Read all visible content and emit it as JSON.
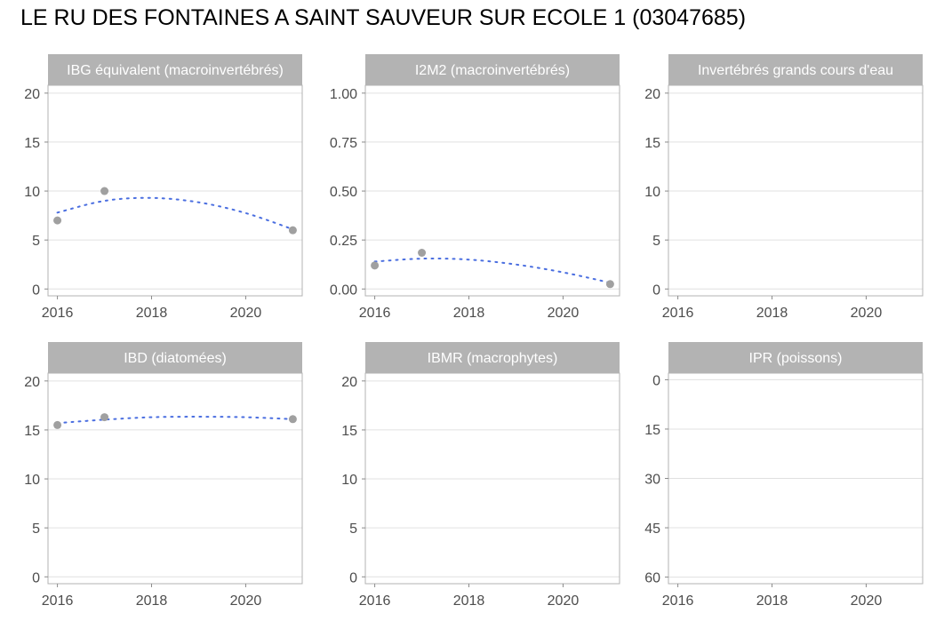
{
  "title": "LE RU DES FONTAINES A SAINT SAUVEUR SUR ECOLE 1 (03047685)",
  "colors": {
    "point": "#a0a0a0",
    "trend": "#4a6ee0",
    "strip": "#b3b3b3",
    "strip_text": "#ffffff",
    "grid": "#e0e0e0",
    "border": "#b3b3b3",
    "tick_text": "#4d4d4d"
  },
  "chart_data": [
    {
      "type": "scatter",
      "title": "IBG équivalent (macroinvertébrés)",
      "xlabel": "",
      "ylabel": "",
      "xlim": [
        2015.8,
        2021.2
      ],
      "ylim": [
        -0.7,
        20.8
      ],
      "x_ticks": [
        2016,
        2018,
        2020
      ],
      "y_ticks": [
        0,
        5,
        10,
        15,
        20
      ],
      "y_tick_labels": [
        "0",
        "5",
        "10",
        "15",
        "20"
      ],
      "y_reversed": false,
      "points": [
        {
          "x": 2016,
          "y": 7
        },
        {
          "x": 2017,
          "y": 10
        },
        {
          "x": 2021,
          "y": 6
        }
      ],
      "trend": {
        "style": "dotted",
        "points": [
          {
            "x": 2016,
            "y": 7.8
          },
          {
            "x": 2017,
            "y": 9.0
          },
          {
            "x": 2018,
            "y": 9.3
          },
          {
            "x": 2019,
            "y": 8.85
          },
          {
            "x": 2020,
            "y": 7.75
          },
          {
            "x": 2021,
            "y": 6.1
          }
        ]
      }
    },
    {
      "type": "scatter",
      "title": "I2M2 (macroinvertébrés)",
      "xlabel": "",
      "ylabel": "",
      "xlim": [
        2015.8,
        2021.2
      ],
      "ylim": [
        -0.035,
        1.04
      ],
      "x_ticks": [
        2016,
        2018,
        2020
      ],
      "y_ticks": [
        0,
        0.25,
        0.5,
        0.75,
        1.0
      ],
      "y_tick_labels": [
        "0.00",
        "0.25",
        "0.50",
        "0.75",
        "1.00"
      ],
      "y_reversed": false,
      "points": [
        {
          "x": 2016,
          "y": 0.12
        },
        {
          "x": 2017,
          "y": 0.185
        },
        {
          "x": 2021,
          "y": 0.025
        }
      ],
      "trend": {
        "style": "dotted",
        "points": [
          {
            "x": 2016,
            "y": 0.14
          },
          {
            "x": 2017,
            "y": 0.155
          },
          {
            "x": 2018,
            "y": 0.15
          },
          {
            "x": 2019,
            "y": 0.125
          },
          {
            "x": 2020,
            "y": 0.085
          },
          {
            "x": 2021,
            "y": 0.032
          }
        ]
      }
    },
    {
      "type": "scatter",
      "title": "Invertébrés grands cours d'eau",
      "xlabel": "",
      "ylabel": "",
      "xlim": [
        2015.8,
        2021.2
      ],
      "ylim": [
        -0.7,
        20.8
      ],
      "x_ticks": [
        2016,
        2018,
        2020
      ],
      "y_ticks": [
        0,
        5,
        10,
        15,
        20
      ],
      "y_tick_labels": [
        "0",
        "5",
        "10",
        "15",
        "20"
      ],
      "y_reversed": false,
      "points": [],
      "trend": null
    },
    {
      "type": "scatter",
      "title": "IBD (diatomées)",
      "xlabel": "",
      "ylabel": "",
      "xlim": [
        2015.8,
        2021.2
      ],
      "ylim": [
        -0.7,
        20.8
      ],
      "x_ticks": [
        2016,
        2018,
        2020
      ],
      "y_ticks": [
        0,
        5,
        10,
        15,
        20
      ],
      "y_tick_labels": [
        "0",
        "5",
        "10",
        "15",
        "20"
      ],
      "y_reversed": false,
      "points": [
        {
          "x": 2016,
          "y": 15.5
        },
        {
          "x": 2017,
          "y": 16.3
        },
        {
          "x": 2021,
          "y": 16.1
        }
      ],
      "trend": {
        "style": "dotted",
        "points": [
          {
            "x": 2016,
            "y": 15.7
          },
          {
            "x": 2017,
            "y": 16.05
          },
          {
            "x": 2018,
            "y": 16.3
          },
          {
            "x": 2019,
            "y": 16.35
          },
          {
            "x": 2020,
            "y": 16.3
          },
          {
            "x": 2021,
            "y": 16.1
          }
        ]
      }
    },
    {
      "type": "scatter",
      "title": "IBMR (macrophytes)",
      "xlabel": "",
      "ylabel": "",
      "xlim": [
        2015.8,
        2021.2
      ],
      "ylim": [
        -0.7,
        20.8
      ],
      "x_ticks": [
        2016,
        2018,
        2020
      ],
      "y_ticks": [
        0,
        5,
        10,
        15,
        20
      ],
      "y_tick_labels": [
        "0",
        "5",
        "10",
        "15",
        "20"
      ],
      "y_reversed": false,
      "points": [],
      "trend": null
    },
    {
      "type": "scatter",
      "title": "IPR (poissons)",
      "xlabel": "",
      "ylabel": "",
      "xlim": [
        2015.8,
        2021.2
      ],
      "ylim": [
        -2,
        62
      ],
      "x_ticks": [
        2016,
        2018,
        2020
      ],
      "y_ticks": [
        0,
        15,
        30,
        45,
        60
      ],
      "y_tick_labels": [
        "0",
        "15",
        "30",
        "45",
        "60"
      ],
      "y_reversed": true,
      "points": [],
      "trend": null
    }
  ]
}
